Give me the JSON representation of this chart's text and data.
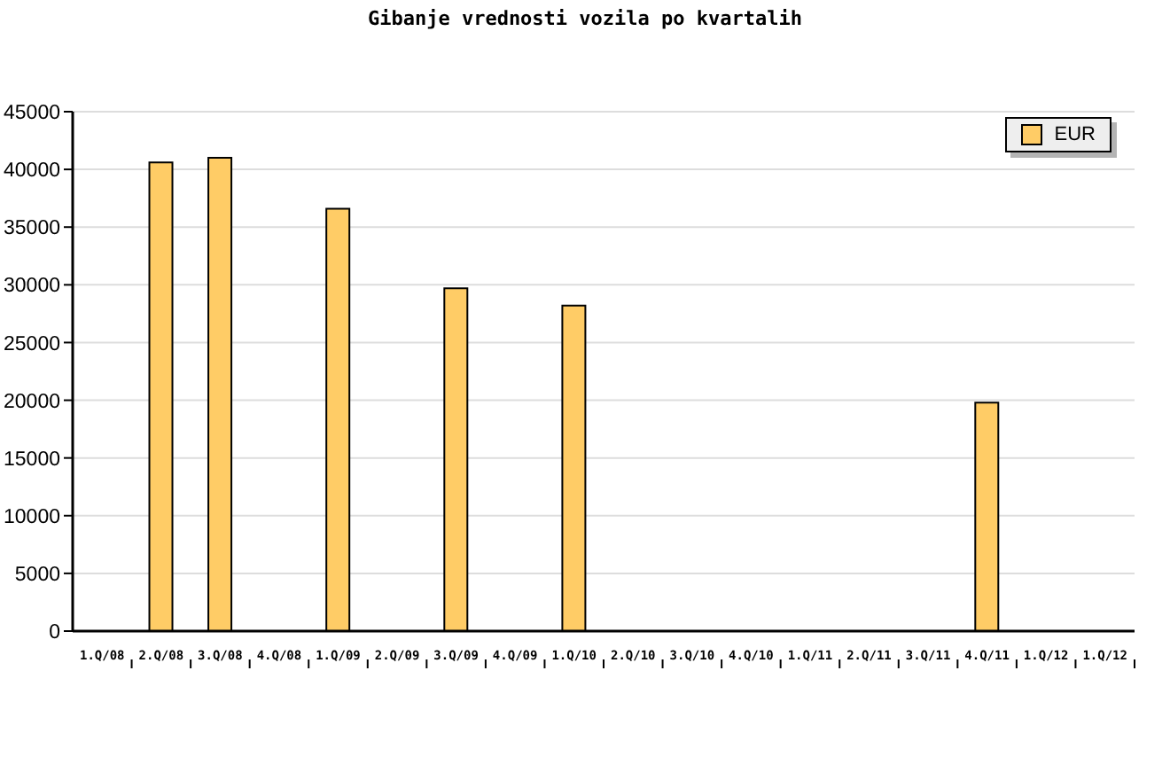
{
  "chart_data": {
    "type": "bar",
    "title": "Gibanje vrednosti vozila po kvartalih",
    "categories": [
      "1.Q/08",
      "2.Q/08",
      "3.Q/08",
      "4.Q/08",
      "1.Q/09",
      "2.Q/09",
      "3.Q/09",
      "4.Q/09",
      "1.Q/10",
      "2.Q/10",
      "3.Q/10",
      "4.Q/10",
      "1.Q/11",
      "2.Q/11",
      "3.Q/11",
      "4.Q/11",
      "1.Q/12",
      "1.Q/12"
    ],
    "series": [
      {
        "name": "EUR",
        "color": "#ffcc66",
        "values": [
          null,
          40600,
          41000,
          null,
          36600,
          null,
          29700,
          null,
          28200,
          null,
          null,
          null,
          null,
          null,
          null,
          19800,
          null,
          null
        ]
      }
    ],
    "ylim": [
      0,
      45000
    ],
    "yticks": [
      0,
      5000,
      10000,
      15000,
      20000,
      25000,
      30000,
      35000,
      40000,
      45000
    ],
    "grid": "y",
    "legend": "top right"
  }
}
